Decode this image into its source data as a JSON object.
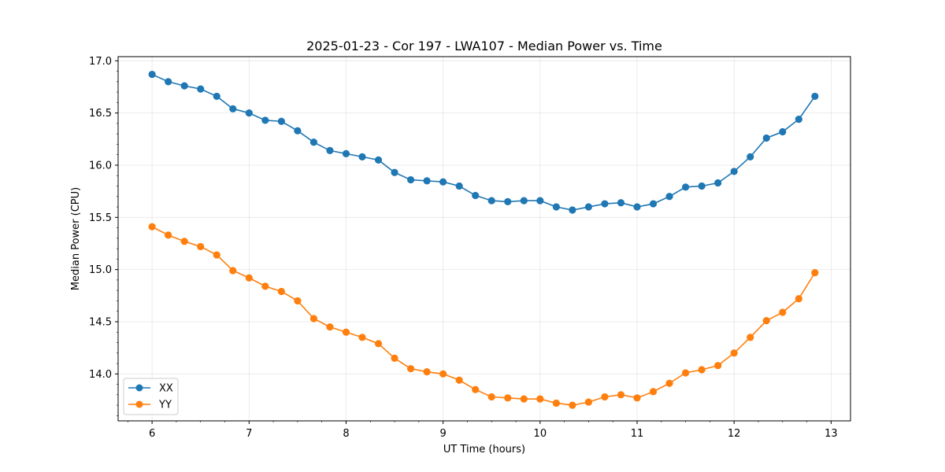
{
  "chart_data": {
    "type": "line",
    "title": "2025-01-23 - Cor 197 - LWA107 - Median Power vs. Time",
    "xlabel": "UT Time (hours)",
    "ylabel": "Median Power (CPU)",
    "xlim": [
      5.65,
      13.2
    ],
    "ylim": [
      13.55,
      17.04
    ],
    "xticks": [
      6,
      7,
      8,
      9,
      10,
      11,
      12,
      13
    ],
    "xtick_labels": [
      "6",
      "7",
      "8",
      "9",
      "10",
      "11",
      "12",
      "13"
    ],
    "yticks": [
      14.0,
      14.5,
      15.0,
      15.5,
      16.0,
      16.5,
      17.0
    ],
    "ytick_labels": [
      "14.0",
      "14.5",
      "15.0",
      "15.5",
      "16.0",
      "16.5",
      "17.0"
    ],
    "grid": true,
    "legend_position": "lower-left",
    "x": [
      6.0,
      6.1667,
      6.3333,
      6.5,
      6.6667,
      6.8333,
      7.0,
      7.1667,
      7.3333,
      7.5,
      7.6667,
      7.8333,
      8.0,
      8.1667,
      8.3333,
      8.5,
      8.6667,
      8.8333,
      9.0,
      9.1667,
      9.3333,
      9.5,
      9.6667,
      9.8333,
      10.0,
      10.1667,
      10.3333,
      10.5,
      10.6667,
      10.8333,
      11.0,
      11.1667,
      11.3333,
      11.5,
      11.6667,
      11.8333,
      12.0,
      12.1667,
      12.3333,
      12.5,
      12.6667,
      12.8333
    ],
    "series": [
      {
        "name": "XX",
        "color": "#1f77b4",
        "values": [
          16.87,
          16.8,
          16.76,
          16.73,
          16.66,
          16.54,
          16.5,
          16.43,
          16.42,
          16.33,
          16.22,
          16.14,
          16.11,
          16.08,
          16.05,
          15.93,
          15.86,
          15.85,
          15.84,
          15.8,
          15.71,
          15.66,
          15.65,
          15.66,
          15.66,
          15.6,
          15.57,
          15.6,
          15.63,
          15.64,
          15.6,
          15.63,
          15.7,
          15.79,
          15.8,
          15.83,
          15.94,
          16.08,
          16.26,
          16.32,
          16.44,
          16.66
        ]
      },
      {
        "name": "YY",
        "color": "#ff7f0e",
        "values": [
          15.41,
          15.33,
          15.27,
          15.22,
          15.14,
          14.99,
          14.92,
          14.84,
          14.79,
          14.7,
          14.53,
          14.45,
          14.4,
          14.35,
          14.29,
          14.15,
          14.05,
          14.02,
          14.0,
          13.94,
          13.85,
          13.78,
          13.77,
          13.76,
          13.76,
          13.72,
          13.7,
          13.73,
          13.78,
          13.8,
          13.77,
          13.83,
          13.91,
          14.01,
          14.04,
          14.08,
          14.2,
          14.35,
          14.51,
          14.59,
          14.72,
          14.97
        ]
      }
    ]
  }
}
